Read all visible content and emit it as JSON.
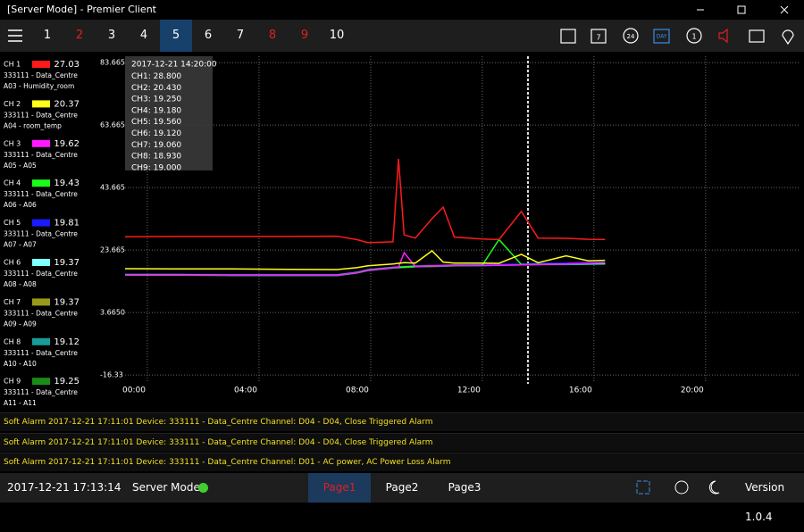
{
  "window_title": "[Server Mode] - Premier Client",
  "tabs": [
    {
      "label": "1",
      "color": "#ffffff"
    },
    {
      "label": "2",
      "color": "#e02020"
    },
    {
      "label": "3",
      "color": "#ffffff"
    },
    {
      "label": "4",
      "color": "#ffffff"
    },
    {
      "label": "5",
      "color": "#ffffff",
      "active": true
    },
    {
      "label": "6",
      "color": "#ffffff"
    },
    {
      "label": "7",
      "color": "#ffffff"
    },
    {
      "label": "8",
      "color": "#e02020"
    },
    {
      "label": "9",
      "color": "#e02020"
    },
    {
      "label": "10",
      "color": "#ffffff"
    }
  ],
  "toolbar_icons": [
    "7",
    "24",
    "DAY",
    "1"
  ],
  "chart_data": {
    "type": "line",
    "x": [
      -0.8,
      1,
      3,
      5,
      6.8,
      7.5,
      7.9,
      8.8,
      9.0,
      9.2,
      9.6,
      10.2,
      10.6,
      11.0,
      12.0,
      12.6,
      13.4,
      14.0,
      15.0,
      15.8,
      16.4
    ],
    "xlim": [
      -0.8,
      23.4
    ],
    "xticks": [
      {
        "value": 0,
        "label": "00:00"
      },
      {
        "value": 4,
        "label": "04:00"
      },
      {
        "value": 8,
        "label": "08:00"
      },
      {
        "value": 12,
        "label": "12:00"
      },
      {
        "value": 16,
        "label": "16:00"
      },
      {
        "value": 20,
        "label": "20:00"
      }
    ],
    "ylim": [
      -18.6,
      85.7
    ],
    "yticks": [
      83.665,
      63.665,
      43.665,
      23.665,
      {
        "value": 3.665,
        "label": "3.6650"
      },
      {
        "value": -16.335,
        "label": "-16.33"
      }
    ],
    "grid": true,
    "series": [
      {
        "name": "CH 1",
        "color": "#ff1a1a",
        "reading": "27.03",
        "device": "333111 - Data_Centre",
        "sensor": "A03 - Humidity_room",
        "values": [
          27.9,
          28.0,
          28.0,
          28.0,
          28.1,
          27.0,
          26.0,
          26.3,
          52.8,
          28.5,
          27.5,
          33.7,
          37.4,
          27.8,
          27.2,
          27.0,
          36.0,
          27.5,
          27.4,
          27.1,
          27.03
        ]
      },
      {
        "name": "CH 2",
        "color": "#ffff1a",
        "reading": "20.37",
        "device": "333111 - Data_Centre",
        "sensor": "A04 - room_temp",
        "values": [
          17.7,
          17.6,
          17.6,
          17.5,
          17.4,
          18.0,
          18.6,
          19.2,
          19.4,
          19.6,
          19.5,
          23.4,
          19.8,
          19.5,
          19.5,
          19.4,
          22.3,
          19.6,
          21.8,
          20.2,
          20.37
        ]
      },
      {
        "name": "CH 3",
        "color": "#ff1aff",
        "reading": "19.62",
        "device": "333111 - Data_Centre",
        "sensor": "A05 - A05",
        "values": [
          15.7,
          15.7,
          15.6,
          15.6,
          15.6,
          16.4,
          17.2,
          18.0,
          18.2,
          22.8,
          18.4,
          18.6,
          18.6,
          18.7,
          18.7,
          18.8,
          18.9,
          19.0,
          19.2,
          19.4,
          19.62
        ]
      },
      {
        "name": "CH 4",
        "color": "#1aff1a",
        "reading": "19.43",
        "device": "333111 - Data_Centre",
        "sensor": "A06 - A06",
        "values": [
          15.8,
          15.8,
          15.7,
          15.7,
          15.7,
          16.5,
          17.3,
          18.1,
          18.2,
          18.3,
          18.5,
          18.6,
          18.7,
          18.8,
          18.8,
          27.0,
          19.0,
          19.1,
          19.2,
          19.3,
          19.43
        ]
      },
      {
        "name": "CH 5",
        "color": "#1a1aff",
        "reading": "19.81",
        "device": "333111 - Data_Centre",
        "sensor": "A07 - A07",
        "values": [
          15.9,
          15.9,
          15.8,
          15.8,
          15.8,
          16.6,
          17.4,
          18.2,
          18.3,
          18.4,
          18.6,
          18.7,
          18.8,
          18.9,
          19.0,
          19.1,
          19.2,
          19.4,
          19.5,
          19.7,
          19.81
        ]
      },
      {
        "name": "CH 6",
        "color": "#80ffff",
        "reading": "19.37",
        "device": "333111 - Data_Centre",
        "sensor": "A08 - A08",
        "values": [
          15.8,
          15.8,
          15.7,
          15.7,
          15.7,
          16.5,
          17.3,
          18.1,
          18.2,
          18.3,
          18.5,
          18.6,
          18.7,
          18.8,
          18.9,
          19.0,
          19.1,
          19.2,
          19.2,
          19.3,
          19.37
        ]
      },
      {
        "name": "CH 7",
        "color": "#9a9a1a",
        "reading": "19.37",
        "device": "333111 - Data_Centre",
        "sensor": "A09 - A09",
        "values": [
          15.7,
          15.7,
          15.7,
          15.6,
          15.6,
          16.4,
          17.2,
          18.0,
          18.1,
          18.2,
          18.4,
          18.5,
          18.6,
          18.7,
          18.8,
          18.9,
          19.0,
          19.1,
          19.2,
          19.3,
          19.37
        ]
      },
      {
        "name": "CH 8",
        "color": "#1a9a9a",
        "reading": "19.12",
        "device": "333111 - Data_Centre",
        "sensor": "A10 - A10",
        "values": [
          15.6,
          15.6,
          15.5,
          15.5,
          15.5,
          16.3,
          17.1,
          17.9,
          18.0,
          18.1,
          18.3,
          18.4,
          18.5,
          18.6,
          18.7,
          18.8,
          18.9,
          19.0,
          19.0,
          19.1,
          19.12
        ]
      },
      {
        "name": "CH 9",
        "color": "#1a8c1a",
        "reading": "19.25",
        "device": "333111 - Data_Centre",
        "sensor": "A11 - A11",
        "values": [
          15.6,
          15.6,
          15.6,
          15.5,
          15.5,
          16.3,
          17.1,
          17.9,
          18.0,
          18.1,
          18.3,
          18.4,
          18.5,
          18.6,
          18.7,
          18.8,
          18.9,
          19.0,
          19.1,
          19.2,
          19.25
        ]
      }
    ],
    "tooltip": {
      "time": "2017-12-21 14:20:00",
      "readings": [
        "CH1: 28.800",
        "CH2: 20.430",
        "CH3: 19.250",
        "CH4: 19.180",
        "CH5: 19.560",
        "CH6: 19.120",
        "CH7: 19.060",
        "CH8: 18.930",
        "CH9: 19.000"
      ]
    }
  },
  "alarms": [
    "Soft Alarm 2017-12-21 17:11:01 Device: 333111 - Data_Centre Channel: D04 - D04, Close Triggered Alarm",
    "Soft Alarm 2017-12-21 17:11:01 Device: 333111 - Data_Centre Channel: D04 - D04, Close Triggered Alarm",
    "Soft Alarm 2017-12-21 17:11:01 Device: 333111 - Data_Centre Channel: D01 - AC power, AC Power Loss Alarm"
  ],
  "status_bar": {
    "datetime": "2017-12-21 17:13:14",
    "mode": "Server Mode",
    "pages": [
      "Page1",
      "Page2",
      "Page3"
    ],
    "version": "Version 1.0.4"
  }
}
